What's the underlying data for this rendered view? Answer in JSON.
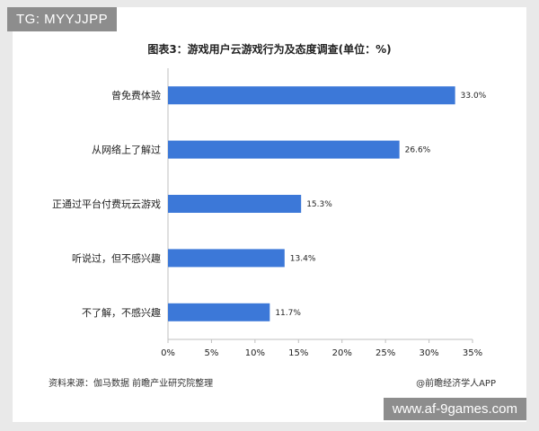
{
  "badges": {
    "top_left": "TG: MYYJJPP",
    "bottom_right": "www.af-9games.com"
  },
  "colors": {
    "bar": "#3c78d8",
    "axis": "#bfbfbf"
  },
  "footer": {
    "source": "资料来源：伽马数据 前瞻产业研究院整理",
    "credit": "@前瞻经济学人APP"
  },
  "chart_data": {
    "type": "bar",
    "orientation": "horizontal",
    "title": "图表3：游戏用户云游戏行为及态度调查(单位：%)",
    "categories": [
      "曾免费体验",
      "从网络上了解过",
      "正通过平台付费玩云游戏",
      "听说过，但不感兴趣",
      "不了解，不感兴趣"
    ],
    "values": [
      33.0,
      26.6,
      15.3,
      13.4,
      11.7
    ],
    "value_labels": [
      "33.0%",
      "26.6%",
      "15.3%",
      "13.4%",
      "11.7%"
    ],
    "xlim": [
      0,
      35
    ],
    "xticks": [
      0,
      5,
      10,
      15,
      20,
      25,
      30,
      35
    ],
    "xtick_labels": [
      "0%",
      "5%",
      "10%",
      "15%",
      "20%",
      "25%",
      "30%",
      "35%"
    ],
    "grid": false,
    "legend": "none"
  }
}
